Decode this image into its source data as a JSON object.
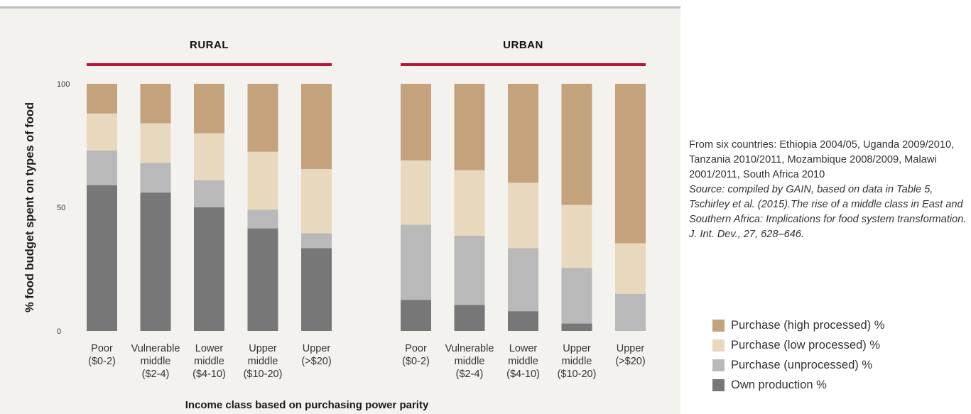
{
  "chart_data": {
    "type": "bar",
    "stacked": true,
    "ylabel": "% food budget spent on types of food",
    "xlabel": "Income class based on purchasing power parity",
    "ylim": [
      0,
      100
    ],
    "yticks": [
      "0",
      "50",
      "100"
    ],
    "categories": [
      [
        "Poor",
        "($0-2)"
      ],
      [
        "Vulnerable",
        "middle",
        "($2-4)"
      ],
      [
        "Lower",
        "middle",
        "($4-10)"
      ],
      [
        "Upper",
        "middle",
        "($10-20)"
      ],
      [
        "Upper",
        "(>$20)"
      ]
    ],
    "series_names": [
      "Own production %",
      "Purchase (unprocessed) %",
      "Purchase (low processed) %",
      "Purchase (high processed) %"
    ],
    "colors": [
      "#777777",
      "#b9b9b9",
      "#e8d8be",
      "#c4a27c"
    ],
    "groups": [
      {
        "title": "RURAL",
        "stacks": [
          [
            59,
            14,
            15,
            12
          ],
          [
            56,
            12,
            16,
            16
          ],
          [
            50,
            11,
            19,
            20
          ],
          [
            41.5,
            7.5,
            23.5,
            27.5
          ],
          [
            33.5,
            6,
            26,
            34.5
          ]
        ]
      },
      {
        "title": "URBAN",
        "stacks": [
          [
            12.5,
            30.5,
            26,
            31
          ],
          [
            10.5,
            28,
            26.5,
            35
          ],
          [
            8,
            25.5,
            26.5,
            40
          ],
          [
            3,
            22.5,
            25.5,
            49
          ],
          [
            0,
            15,
            20.5,
            64.5
          ]
        ]
      }
    ]
  },
  "note": {
    "text": "From six countries: Ethiopia 2004/05, Uganda 2009/2010, Tanzania 2010/2011, Mozambique 2008/2009, Malawi 2001/2011, South Africa 2010",
    "source": "Source: compiled by GAIN, based on data in Table 5, Tschirley et al. (2015).The rise of a middle class in East and Southern Africa: Implications for food system transformation. J. Int. Dev., 27, 628–646."
  },
  "legend": [
    {
      "label": "Purchase (high processed) %",
      "color": "#c4a27c"
    },
    {
      "label": "Purchase (low processed) %",
      "color": "#e8d8be"
    },
    {
      "label": "Purchase (unprocessed) %",
      "color": "#b9b9b9"
    },
    {
      "label": "Own production %",
      "color": "#777777"
    }
  ],
  "accent_color": "#b5163a"
}
